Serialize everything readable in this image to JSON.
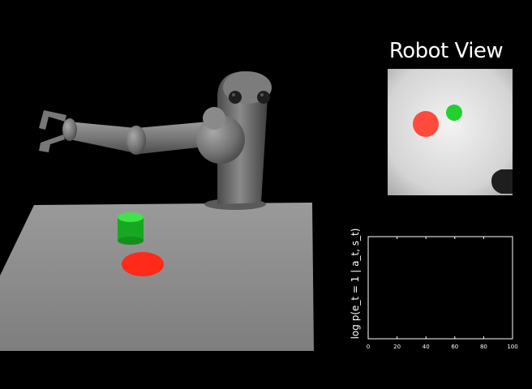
{
  "robot_view": {
    "title": "Robot View"
  },
  "plot": {
    "ylabel": "log p(e_t = 1 | a_t, s_t)",
    "xlim": [
      0,
      100
    ],
    "x_ticks": [
      "0",
      "20",
      "40",
      "60",
      "80",
      "100"
    ]
  },
  "colors": {
    "background": "#000000",
    "table": "#8c8c8c",
    "robot": "#7a7a7a",
    "green_cylinder": "#1fbf2a",
    "red_target": "#ff2a1a"
  }
}
